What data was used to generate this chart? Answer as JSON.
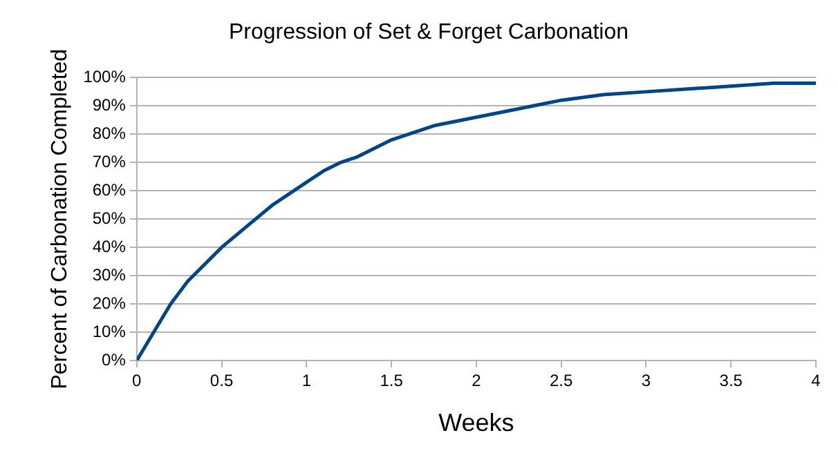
{
  "chart_data": {
    "type": "line",
    "title": "Progression of Set & Forget Carbonation",
    "xlabel": "Weeks",
    "ylabel": "Percent of Carbonation Completed",
    "series": [
      {
        "color": "#004586",
        "x": [
          0,
          0.05,
          0.1,
          0.2,
          0.3,
          0.4,
          0.5,
          0.6,
          0.7,
          0.8,
          0.9,
          1,
          1.1,
          1.2,
          1.3,
          1.4,
          1.5,
          1.75,
          2,
          2.25,
          2.5,
          2.75,
          3,
          3.25,
          3.5,
          3.75,
          4
        ],
        "values": [
          0,
          5,
          10,
          20,
          28,
          34,
          40,
          45,
          50,
          55,
          59,
          63,
          67,
          70,
          72,
          75,
          78,
          83,
          86,
          89,
          92,
          94,
          95,
          96,
          97,
          98,
          98
        ]
      }
    ],
    "xlim": [
      0,
      4
    ],
    "xticks": [
      0,
      0.5,
      1,
      1.5,
      2,
      2.5,
      3,
      3.5,
      4
    ],
    "ylim": [
      0,
      100
    ],
    "yticks": [
      {
        "value": 0,
        "label": "0%"
      },
      {
        "value": 10,
        "label": "10%"
      },
      {
        "value": 20,
        "label": "20%"
      },
      {
        "value": 30,
        "label": "30%"
      },
      {
        "value": 40,
        "label": "40%"
      },
      {
        "value": 50,
        "label": "50%"
      },
      {
        "value": 60,
        "label": "60%"
      },
      {
        "value": 70,
        "label": "70%"
      },
      {
        "value": 80,
        "label": "80%"
      },
      {
        "value": 90,
        "label": "90%"
      },
      {
        "value": 100,
        "label": "100%"
      }
    ],
    "grid": "y",
    "legend": false,
    "marker": "none",
    "line_style": "solid"
  }
}
